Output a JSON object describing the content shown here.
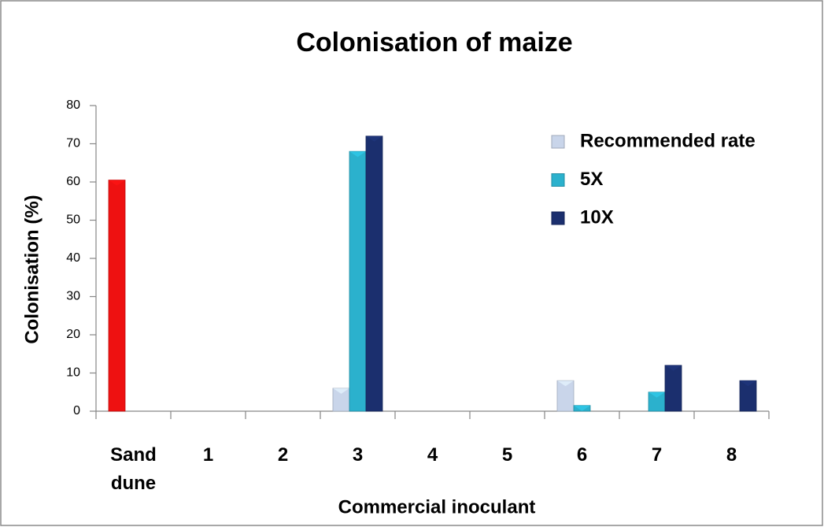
{
  "chart_data": {
    "type": "bar",
    "title": "Colonisation of maize",
    "x_label": "Commercial inoculant",
    "y_label": "Colonisation (%)",
    "categories": [
      "Sand dune",
      "1",
      "2",
      "3",
      "4",
      "5",
      "6",
      "7",
      "8"
    ],
    "series": [
      {
        "name": "Recommended rate",
        "color": "#c9d5ea",
        "values": [
          60.5,
          0,
          0,
          6,
          0,
          0,
          8,
          0,
          0
        ]
      },
      {
        "name": "5X",
        "color": "#2bb1cd",
        "values": [
          0,
          0,
          0,
          68,
          0,
          0,
          1.5,
          5,
          0
        ]
      },
      {
        "name": "10X",
        "color": "#1b2f6e",
        "values": [
          0,
          0,
          0,
          72,
          0,
          0,
          0,
          12,
          8
        ]
      }
    ],
    "point_color_overrides": [
      {
        "series": 0,
        "index": 0,
        "color": "#ee1111"
      }
    ],
    "ylim": [
      0,
      80
    ],
    "yticks": [
      0,
      10,
      20,
      30,
      40,
      50,
      60,
      70,
      80
    ],
    "grid": false,
    "legend": "upper right"
  }
}
